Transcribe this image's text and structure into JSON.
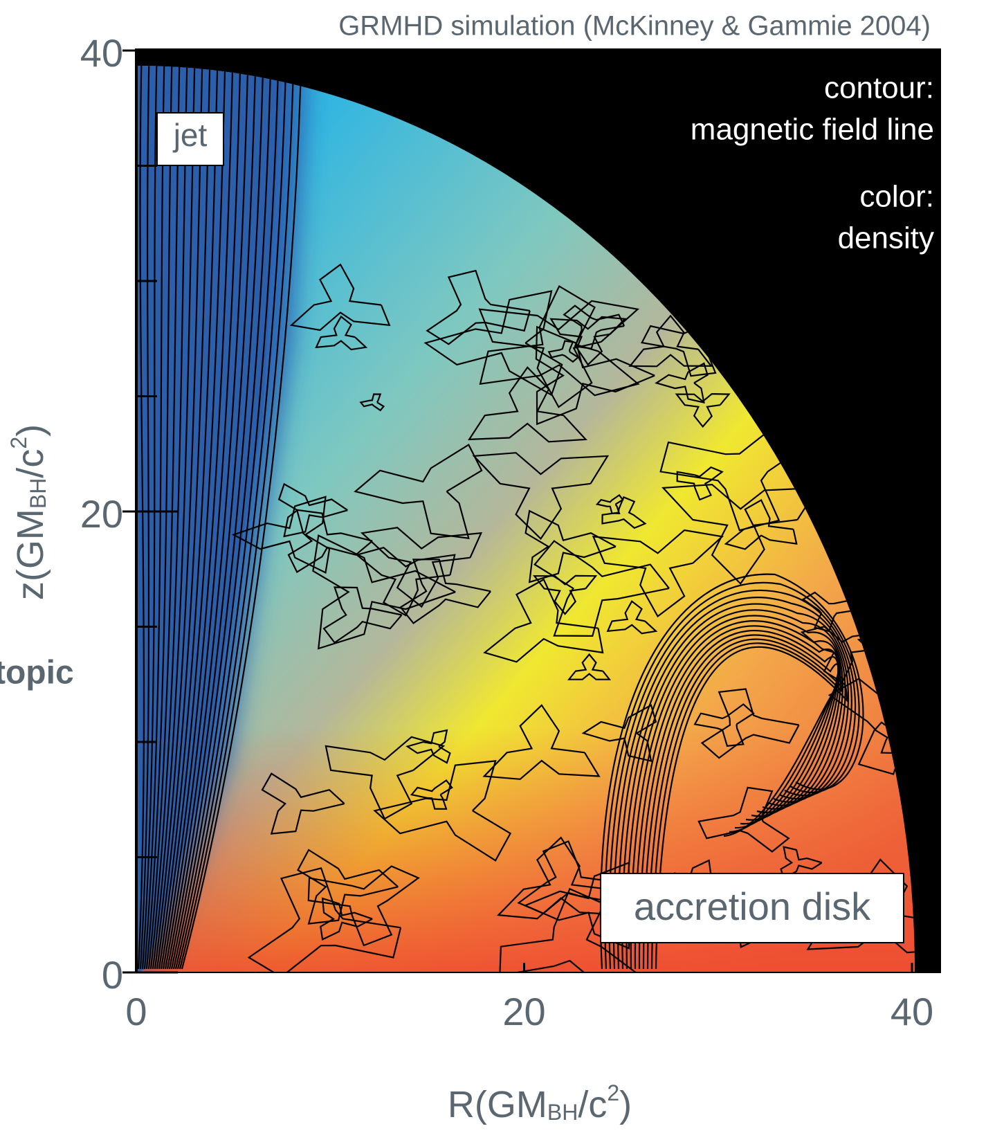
{
  "chart_data": {
    "type": "image",
    "title": "GRMHD simulation (McKinney & Gammie 2004)",
    "x_label": [
      "R(GM",
      "BH",
      "/c",
      "2",
      ")"
    ],
    "y_label": [
      "z(GM",
      "BH",
      "/c",
      "2",
      ")"
    ],
    "xlim": [
      0,
      40
    ],
    "ylim": [
      0,
      40
    ],
    "xticks": [
      0,
      20,
      40
    ],
    "yticks": [
      0,
      20,
      40
    ],
    "y_minor_ticks": [
      5,
      10,
      15,
      25,
      30,
      35
    ],
    "annotations": {
      "jet": "jet",
      "contour": "contour:",
      "contour_desc": "magnetic field line",
      "color": "color:",
      "color_desc": "density",
      "disk": "accretion disk",
      "side": "topic"
    }
  }
}
